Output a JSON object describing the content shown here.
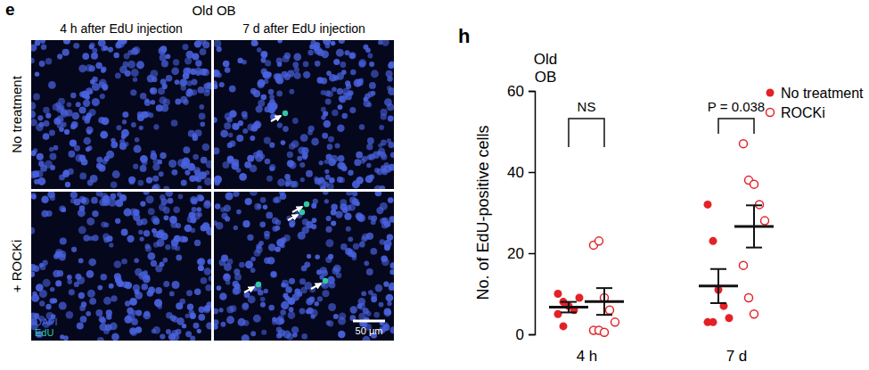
{
  "panel_e": {
    "label": "e",
    "title": "Old OB",
    "columns": [
      "4 h after EdU injection",
      "7 d after EdU injection"
    ],
    "rows": [
      "No treatment",
      "+ ROCKi"
    ],
    "channels": [
      {
        "name": "DAPI",
        "color": "#4a63e0"
      },
      {
        "name": "EdU",
        "color": "#2fc7a4"
      }
    ],
    "scale_bar": "50 μm"
  },
  "chart_data": {
    "type": "scatter",
    "panel_label": "h",
    "title": "Old OB",
    "y_label": "No. of EdU-positive cells",
    "categories": [
      "4 h",
      "7 d"
    ],
    "series": [
      {
        "name": "No treatment",
        "color": "#e32228",
        "marker": "filled",
        "values": [
          [
            10,
            2,
            7,
            6,
            9,
            5,
            8
          ],
          [
            32,
            23,
            11,
            7,
            4,
            3,
            3
          ]
        ],
        "mean": [
          6.7,
          11.9
        ],
        "sem": [
          1.3,
          4.2
        ]
      },
      {
        "name": "ROCKi",
        "color": "#e32228",
        "marker": "open",
        "values": [
          [
            22,
            23,
            9,
            6,
            3,
            1,
            1,
            0.5
          ],
          [
            47,
            38,
            37,
            32,
            28,
            17,
            9,
            5
          ]
        ],
        "mean": [
          8.1,
          26.6
        ],
        "sem": [
          3.3,
          5.2
        ]
      }
    ],
    "comparisons": [
      "NS",
      "P = 0.038"
    ],
    "ylim": [
      0,
      60
    ],
    "yticks": [
      0,
      20,
      40,
      60
    ],
    "legend": "top-right"
  }
}
